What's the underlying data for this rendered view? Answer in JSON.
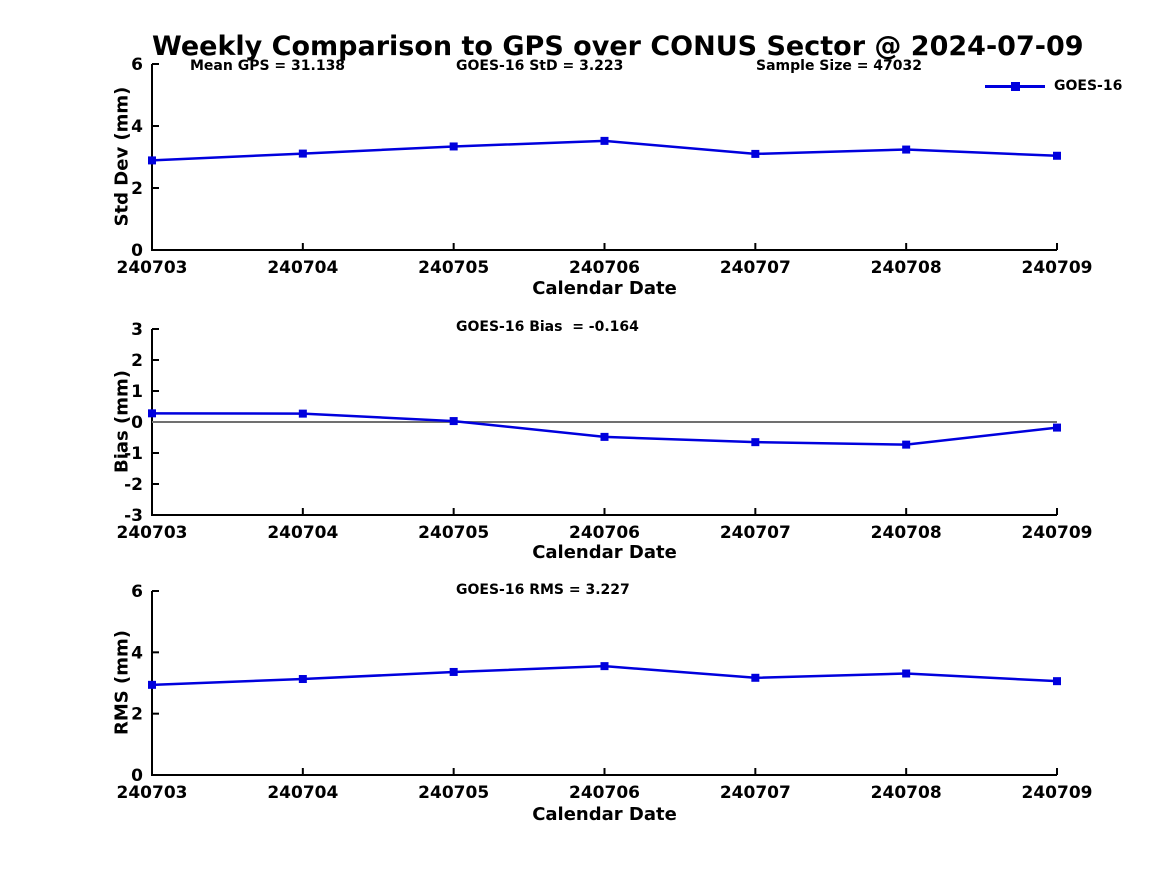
{
  "title": "Weekly Comparison to GPS over CONUS Sector @ 2024-07-09",
  "legend": {
    "label": "GOES-16"
  },
  "colors": {
    "series": "#0000dd",
    "axis": "#000000",
    "zero_line": "#707070",
    "background": "#ffffff",
    "text": "#000000"
  },
  "chart_data": [
    {
      "type": "line",
      "name": "std-dev",
      "title": "",
      "ylabel": "Std Dev (mm)",
      "xlabel": "Calendar Date",
      "categories": [
        "240703",
        "240704",
        "240705",
        "240706",
        "240707",
        "240708",
        "240709"
      ],
      "series": [
        {
          "name": "GOES-16",
          "values": [
            2.89,
            3.11,
            3.34,
            3.52,
            3.1,
            3.24,
            3.04
          ]
        }
      ],
      "ylim": [
        0,
        6
      ],
      "yticks": [
        0,
        2,
        4,
        6
      ],
      "grid": false,
      "zero_line": false,
      "annotations": [
        "Mean GPS = 31.138",
        "GOES-16 StD = 3.223",
        "Sample Size = 47032"
      ],
      "legend_position": "upper-right-inside"
    },
    {
      "type": "line",
      "name": "bias",
      "title": "",
      "ylabel": "Bias (mm)",
      "xlabel": "Calendar Date",
      "categories": [
        "240703",
        "240704",
        "240705",
        "240706",
        "240707",
        "240708",
        "240709"
      ],
      "series": [
        {
          "name": "GOES-16",
          "values": [
            0.28,
            0.27,
            0.03,
            -0.48,
            -0.65,
            -0.73,
            -0.18
          ]
        }
      ],
      "ylim": [
        -3,
        3
      ],
      "yticks": [
        3,
        2,
        1,
        0,
        -1,
        -2,
        -3
      ],
      "grid": false,
      "zero_line": true,
      "annotations": [
        "GOES-16 Bias  = -0.164"
      ]
    },
    {
      "type": "line",
      "name": "rms",
      "title": "",
      "ylabel": "RMS (mm)",
      "xlabel": "Calendar Date",
      "categories": [
        "240703",
        "240704",
        "240705",
        "240706",
        "240707",
        "240708",
        "240709"
      ],
      "series": [
        {
          "name": "GOES-16",
          "values": [
            2.94,
            3.13,
            3.36,
            3.55,
            3.17,
            3.31,
            3.06
          ]
        }
      ],
      "ylim": [
        0,
        6
      ],
      "yticks": [
        0,
        2,
        4,
        6
      ],
      "grid": false,
      "zero_line": false,
      "annotations": [
        "GOES-16 RMS = 3.227"
      ]
    }
  ]
}
